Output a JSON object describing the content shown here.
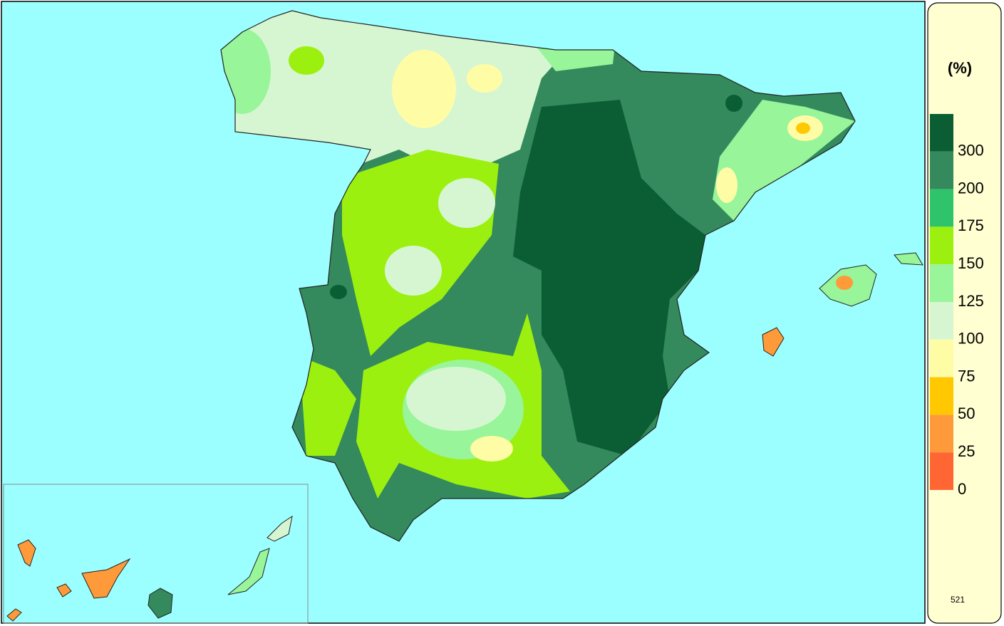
{
  "legend": {
    "unit": "(%)",
    "ticks": [
      300,
      200,
      175,
      150,
      125,
      100,
      75,
      50,
      25,
      0
    ],
    "colors": [
      "#0b5e33",
      "#348a5c",
      "#2fc46c",
      "#9cf00f",
      "#98f59a",
      "#d6f6d2",
      "#fffca6",
      "#ffc800",
      "#ff9a3a",
      "#ff6633"
    ]
  },
  "map_code": "521"
}
